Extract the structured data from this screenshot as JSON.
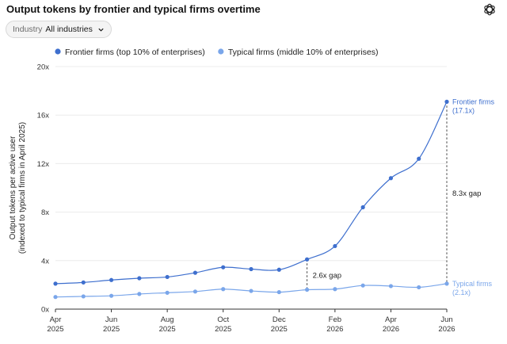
{
  "header": {
    "title": "Output tokens by frontier and typical firms overtime"
  },
  "filter": {
    "label": "Industry",
    "value": "All industries"
  },
  "colors": {
    "frontier": "#3e6fce",
    "typical": "#7aa6ea"
  },
  "icons": {
    "brand": "openai-logo-icon",
    "dropdown": "chevron-down-icon"
  },
  "chart_data": {
    "type": "line",
    "title": "Output tokens by frontier and typical firms overtime",
    "ylabel": [
      "Output tokens per active user",
      "(indexed to typical firms in April 2025)"
    ],
    "xlabel": "",
    "ylim": [
      0,
      20
    ],
    "yticks": [
      0,
      4,
      8,
      12,
      16,
      20
    ],
    "ytick_labels": [
      "0x",
      "4x",
      "8x",
      "12x",
      "16x",
      "20x"
    ],
    "x": [
      "2025-04",
      "2025-05",
      "2025-06",
      "2025-07",
      "2025-08",
      "2025-09",
      "2025-10",
      "2025-11",
      "2025-12",
      "2026-01",
      "2026-02",
      "2026-03",
      "2026-04",
      "2026-05",
      "2026-06"
    ],
    "xticks": [
      {
        "x": "2025-04",
        "line1": "Apr",
        "line2": "2025"
      },
      {
        "x": "2025-06",
        "line1": "Jun",
        "line2": "2025"
      },
      {
        "x": "2025-08",
        "line1": "Aug",
        "line2": "2025"
      },
      {
        "x": "2025-10",
        "line1": "Oct",
        "line2": "2025"
      },
      {
        "x": "2025-12",
        "line1": "Dec",
        "line2": "2025"
      },
      {
        "x": "2026-02",
        "line1": "Feb",
        "line2": "2026"
      },
      {
        "x": "2026-04",
        "line1": "Apr",
        "line2": "2026"
      },
      {
        "x": "2026-06",
        "line1": "Jun",
        "line2": "2026"
      }
    ],
    "legend_position": "top-left",
    "grid": "horizontal",
    "series": [
      {
        "name": "Frontier firms (top 10% of enterprises)",
        "end_label": "Frontier firms",
        "end_value_label": "(17.1x)",
        "values": [
          2.1,
          2.2,
          2.4,
          2.55,
          2.65,
          3.0,
          3.45,
          3.3,
          3.25,
          4.1,
          5.2,
          8.4,
          10.8,
          12.4,
          17.1
        ]
      },
      {
        "name": "Typical firms (middle 10% of enterprises)",
        "end_label": "Typical firms",
        "end_value_label": "(2.1x)",
        "values": [
          1.0,
          1.05,
          1.1,
          1.25,
          1.35,
          1.45,
          1.65,
          1.5,
          1.4,
          1.6,
          1.65,
          1.95,
          1.9,
          1.8,
          2.1
        ]
      }
    ],
    "annotations": [
      {
        "x": "2026-01",
        "text": "2.6x gap"
      },
      {
        "x": "2026-06",
        "text": "8.3x gap"
      }
    ]
  }
}
